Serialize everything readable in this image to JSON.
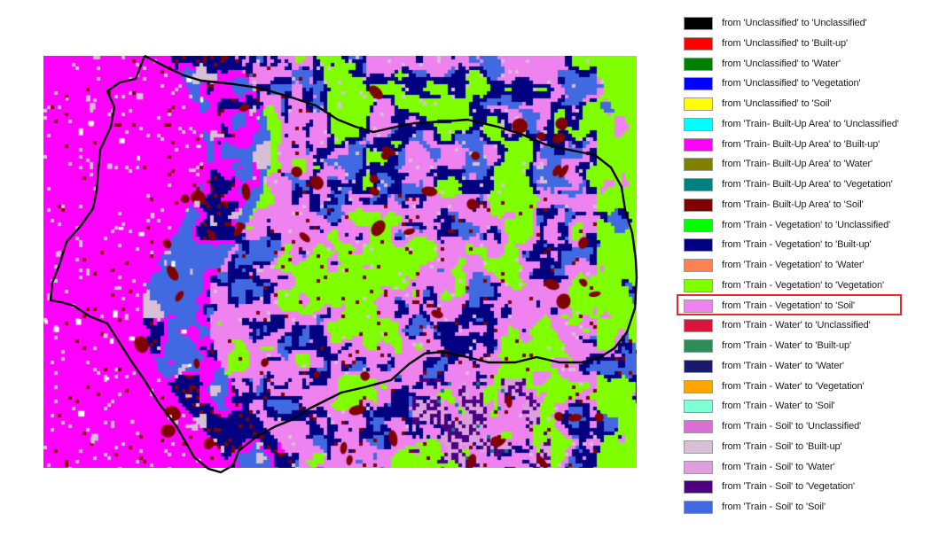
{
  "map": {
    "base_color": "#ff00ff",
    "boundary_color": "#000000"
  },
  "legend": {
    "highlighted_index": 14,
    "items": [
      {
        "label": "from 'Unclassified' to 'Unclassified'",
        "color": "#000000"
      },
      {
        "label": "from 'Unclassified' to 'Built-up'",
        "color": "#ff0000"
      },
      {
        "label": "from 'Unclassified' to 'Water'",
        "color": "#008000"
      },
      {
        "label": "from 'Unclassified' to 'Vegetation'",
        "color": "#0000ff"
      },
      {
        "label": "from 'Unclassified' to 'Soil'",
        "color": "#ffff00"
      },
      {
        "label": "from 'Train- Built-Up Area' to 'Unclassified'",
        "color": "#00ffff"
      },
      {
        "label": "from 'Train- Built-Up Area' to 'Built-up'",
        "color": "#ff00ff"
      },
      {
        "label": "from 'Train- Built-Up Area' to 'Water'",
        "color": "#808000"
      },
      {
        "label": "from 'Train- Built-Up Area' to 'Vegetation'",
        "color": "#008080"
      },
      {
        "label": "from 'Train- Built-Up Area' to 'Soil'",
        "color": "#800000"
      },
      {
        "label": "from 'Train - Vegetation' to 'Unclassified'",
        "color": "#00ff00"
      },
      {
        "label": "from 'Train - Vegetation' to 'Built-up'",
        "color": "#000080"
      },
      {
        "label": "from 'Train - Vegetation' to 'Water'",
        "color": "#ff8050"
      },
      {
        "label": "from 'Train - Vegetation' to 'Vegetation'",
        "color": "#80ff00"
      },
      {
        "label": "from 'Train - Vegetation' to 'Soil'",
        "color": "#ee82ee"
      },
      {
        "label": "from 'Train - Water' to 'Unclassified'",
        "color": "#dc143c"
      },
      {
        "label": "from 'Train - Water' to 'Built-up'",
        "color": "#2e8b57"
      },
      {
        "label": "from 'Train - Water' to 'Water'",
        "color": "#191970"
      },
      {
        "label": "from 'Train - Water' to 'Vegetation'",
        "color": "#ffa500"
      },
      {
        "label": "from 'Train - Water' to 'Soil'",
        "color": "#7fffd4"
      },
      {
        "label": "from 'Train - Soil' to 'Unclassified'",
        "color": "#da70d6"
      },
      {
        "label": "from 'Train - Soil' to 'Built-up'",
        "color": "#d8bfd8"
      },
      {
        "label": "from 'Train - Soil' to 'Water'",
        "color": "#dda0dd"
      },
      {
        "label": "from 'Train - Soil' to 'Vegetation'",
        "color": "#4b0082"
      },
      {
        "label": "from 'Train - Soil' to 'Soil'",
        "color": "#4169e1"
      }
    ]
  }
}
